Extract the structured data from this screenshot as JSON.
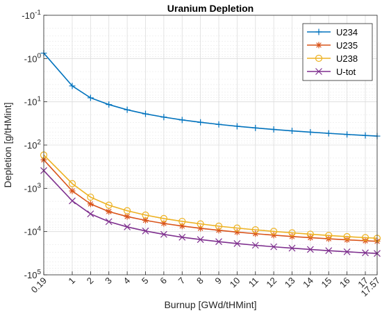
{
  "chart_data": {
    "type": "line",
    "title": "Uranium Depletion",
    "xlabel": "Burnup [GWd/tHMint]",
    "ylabel": "Depletion [g/tHMint]",
    "x": [
      0.19,
      1,
      2,
      3,
      4,
      5,
      6,
      7,
      8,
      9,
      10,
      11,
      12,
      13,
      14,
      15,
      16,
      17,
      17.57
    ],
    "x_tick_labels": [
      "0.19",
      "1",
      "2",
      "3",
      "4",
      "5",
      "6",
      "7",
      "8",
      "9",
      "10",
      "11",
      "12",
      "13",
      "14",
      "15",
      "16",
      "17",
      "17.57"
    ],
    "y_scale": "log",
    "y_sign": "negative",
    "y_ticks": [
      "-10",
      "-10",
      "-10",
      "-10",
      "-10",
      "-10",
      "-10"
    ],
    "y_tick_exponents": [
      "-1",
      "0",
      "1",
      "2",
      "3",
      "4",
      "5"
    ],
    "ylim": [
      -0.1,
      -100000
    ],
    "grid": true,
    "legend_position": "top-right",
    "series": [
      {
        "name": "U234",
        "marker": "plus",
        "color": "#0072BD",
        "values": [
          -0.75,
          -4.3,
          -8.1,
          -11.6,
          -15.3,
          -19.0,
          -22.6,
          -26.3,
          -29.8,
          -33.3,
          -36.8,
          -40.2,
          -43.6,
          -47.0,
          -50.4,
          -53.6,
          -56.9,
          -60.0,
          -62.0
        ]
      },
      {
        "name": "U235",
        "marker": "asterisk",
        "color": "#D95319",
        "values": [
          -220,
          -1150,
          -2300,
          -3450,
          -4500,
          -5500,
          -6500,
          -7450,
          -8400,
          -9350,
          -10300,
          -11200,
          -12100,
          -13000,
          -13850,
          -14700,
          -15500,
          -16300,
          -16800
        ]
      },
      {
        "name": "U238",
        "marker": "circle",
        "color": "#EDB120",
        "values": [
          -170,
          -780,
          -1600,
          -2450,
          -3300,
          -4150,
          -5000,
          -5800,
          -6650,
          -7500,
          -8300,
          -9100,
          -9900,
          -10700,
          -11500,
          -12300,
          -13100,
          -13800,
          -14300
        ]
      },
      {
        "name": "U-tot",
        "marker": "x",
        "color": "#7E2F8E",
        "values": [
          -390,
          -1950,
          -3900,
          -5900,
          -7800,
          -9700,
          -11600,
          -13500,
          -15300,
          -17100,
          -18900,
          -20700,
          -22500,
          -24200,
          -25900,
          -27600,
          -29300,
          -31000,
          -32000
        ]
      }
    ]
  }
}
